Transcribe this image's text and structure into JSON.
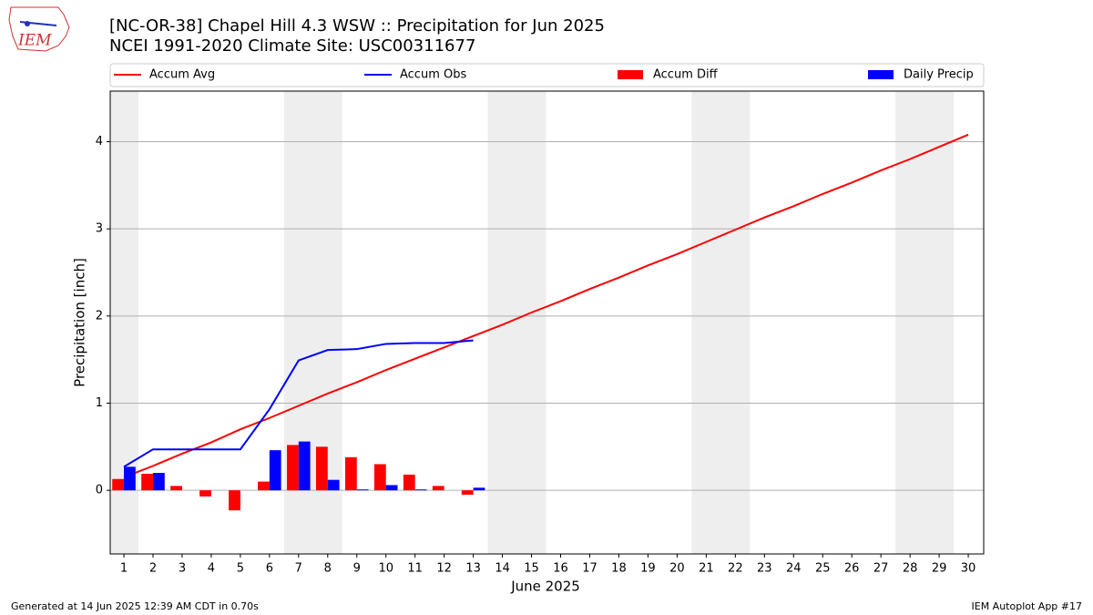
{
  "logo": "IEM",
  "footer": {
    "left": "Generated at 14 Jun 2025 12:39 AM CDT in 0.70s",
    "right": "IEM Autoplot App #17"
  },
  "chart_data": {
    "type": "combo",
    "title": "[NC-OR-38] Chapel Hill 4.3 WSW :: Precipitation for Jun 2025",
    "subtitle": "NCEI 1991-2020 Climate Site: USC00311677",
    "x_label": "June 2025",
    "y_label": "Precipitation [inch]",
    "x": [
      1,
      2,
      3,
      4,
      5,
      6,
      7,
      8,
      9,
      10,
      11,
      12,
      13,
      14,
      15,
      16,
      17,
      18,
      19,
      20,
      21,
      22,
      23,
      24,
      25,
      26,
      27,
      28,
      29,
      30
    ],
    "xlim": [
      0.53,
      30.53
    ],
    "xticks": [
      1,
      2,
      3,
      4,
      5,
      6,
      7,
      8,
      9,
      10,
      11,
      12,
      13,
      14,
      15,
      16,
      17,
      18,
      19,
      20,
      21,
      22,
      23,
      24,
      25,
      26,
      27,
      28,
      29,
      30
    ],
    "ylim": [
      -0.73,
      4.58
    ],
    "yticks": [
      0,
      1,
      2,
      3,
      4
    ],
    "grid": true,
    "weekend_spans": [
      [
        0.5,
        1.5
      ],
      [
        6.5,
        8.5
      ],
      [
        13.5,
        15.5
      ],
      [
        20.5,
        22.5
      ],
      [
        27.5,
        29.5
      ]
    ],
    "series": [
      {
        "name": "Accum Avg",
        "type": "line",
        "color": "#ff0000",
        "values": [
          0.15,
          0.28,
          0.42,
          0.55,
          0.7,
          0.83,
          0.97,
          1.11,
          1.24,
          1.38,
          1.51,
          1.64,
          1.77,
          1.9,
          2.04,
          2.17,
          2.31,
          2.44,
          2.58,
          2.71,
          2.85,
          2.99,
          3.13,
          3.26,
          3.4,
          3.53,
          3.67,
          3.8,
          3.94,
          4.08
        ]
      },
      {
        "name": "Accum Obs",
        "type": "line",
        "color": "#0000ff",
        "values": [
          0.27,
          0.47,
          0.47,
          0.47,
          0.47,
          0.93,
          1.49,
          1.61,
          1.62,
          1.68,
          1.69,
          1.69,
          1.72,
          null,
          null,
          null,
          null,
          null,
          null,
          null,
          null,
          null,
          null,
          null,
          null,
          null,
          null,
          null,
          null,
          null
        ]
      },
      {
        "name": "Accum Diff",
        "type": "bar",
        "color": "#ff0000",
        "values": [
          0.13,
          0.19,
          0.05,
          -0.07,
          -0.23,
          0.1,
          0.52,
          0.5,
          0.38,
          0.3,
          0.18,
          0.05,
          -0.05,
          null,
          null,
          null,
          null,
          null,
          null,
          null,
          null,
          null,
          null,
          null,
          null,
          null,
          null,
          null,
          null,
          null
        ]
      },
      {
        "name": "Daily Precip",
        "type": "bar",
        "color": "#0000ff",
        "values": [
          0.27,
          0.2,
          0,
          0,
          0,
          0.46,
          0.56,
          0.12,
          0.01,
          0.06,
          0.01,
          0,
          0.03,
          null,
          null,
          null,
          null,
          null,
          null,
          null,
          null,
          null,
          null,
          null,
          null,
          null,
          null,
          null,
          null,
          null
        ]
      }
    ]
  }
}
